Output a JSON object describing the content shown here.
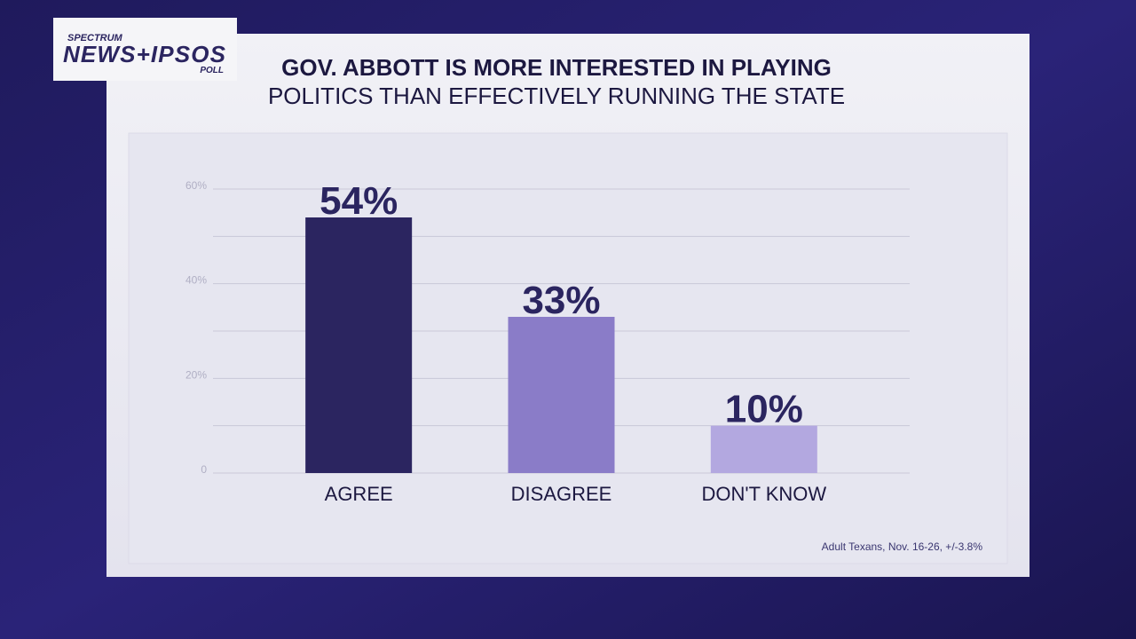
{
  "logo": {
    "top": "SPECTRUM",
    "main": "NEWS+IPSOS",
    "sub": "POLL"
  },
  "chart_data": {
    "type": "bar",
    "title": "GOV. ABBOTT IS MORE INTERESTED IN PLAYING",
    "subtitle": "POLITICS THAN EFFECTIVELY RUNNING THE STATE",
    "categories": [
      "AGREE",
      "DISAGREE",
      "DON'T KNOW"
    ],
    "values": [
      54,
      33,
      10
    ],
    "value_labels": [
      "54%",
      "33%",
      "10%"
    ],
    "colors": [
      "#2b2560",
      "#8a7cc8",
      "#b3a8e0"
    ],
    "ylim": [
      0,
      60
    ],
    "yticks": [
      0,
      {
        "value": 20,
        "label": "20%"
      },
      {
        "value": 40,
        "label": "40%"
      },
      {
        "value": 60,
        "label": "60%"
      }
    ],
    "minor_gridlines": [
      10,
      30,
      50
    ],
    "grid": true,
    "note": "Adult Texans, Nov. 16-26, +/-3.8%"
  }
}
